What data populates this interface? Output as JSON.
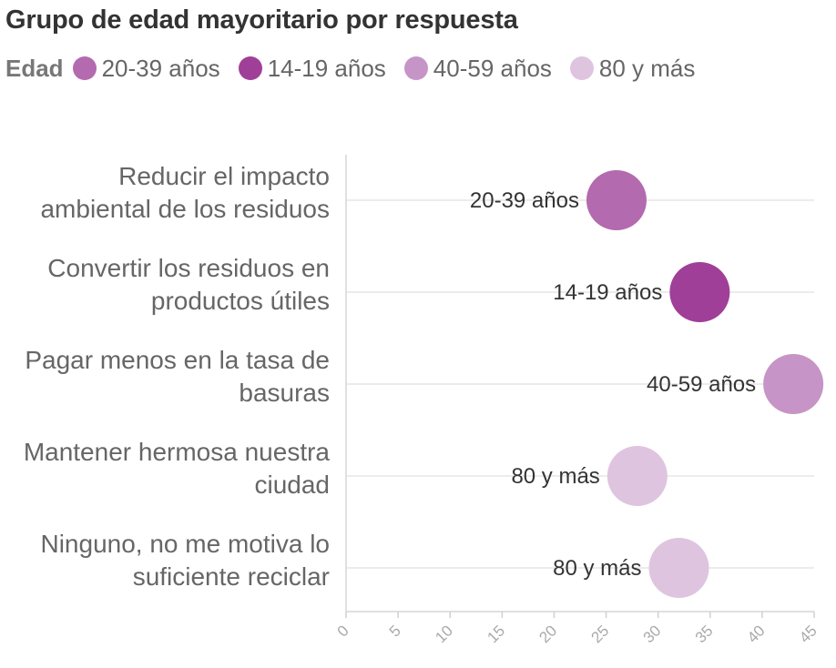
{
  "title": "Grupo de edad mayoritario por respuesta",
  "legend": {
    "title": "Edad",
    "items": [
      {
        "label": "20-39 años",
        "color": "#b46aaf"
      },
      {
        "label": "14-19 años",
        "color": "#a03f98"
      },
      {
        "label": "40-59 años",
        "color": "#c694c6"
      },
      {
        "label": "80 y más",
        "color": "#dfc4e0"
      }
    ]
  },
  "chart_data": {
    "type": "scatter",
    "title": "Grupo de edad mayoritario por respuesta",
    "xlabel": "",
    "ylabel": "",
    "xlim": [
      0,
      45
    ],
    "xticks": [
      "0",
      "5",
      "10",
      "15",
      "20",
      "25",
      "30",
      "35",
      "40",
      "45"
    ],
    "grid": true,
    "legend_position": "top",
    "categories": [
      [
        "Reducir el impacto",
        "ambiental de los residuos"
      ],
      [
        "Convertir los residuos en",
        "productos útiles"
      ],
      [
        "Pagar menos en la tasa de",
        "basuras"
      ],
      [
        "Mantener hermosa nuestra",
        "ciudad"
      ],
      [
        "Ninguno, no me motiva lo",
        "suficiente reciclar"
      ]
    ],
    "points": [
      {
        "value": 26,
        "group": "20-39 años",
        "color": "#b46aaf"
      },
      {
        "value": 34,
        "group": "14-19 años",
        "color": "#a03f98"
      },
      {
        "value": 43,
        "group": "40-59 años",
        "color": "#c694c6"
      },
      {
        "value": 28,
        "group": "80 y más",
        "color": "#dfc4e0"
      },
      {
        "value": 32,
        "group": "80 y más",
        "color": "#dfc4e0"
      }
    ]
  }
}
